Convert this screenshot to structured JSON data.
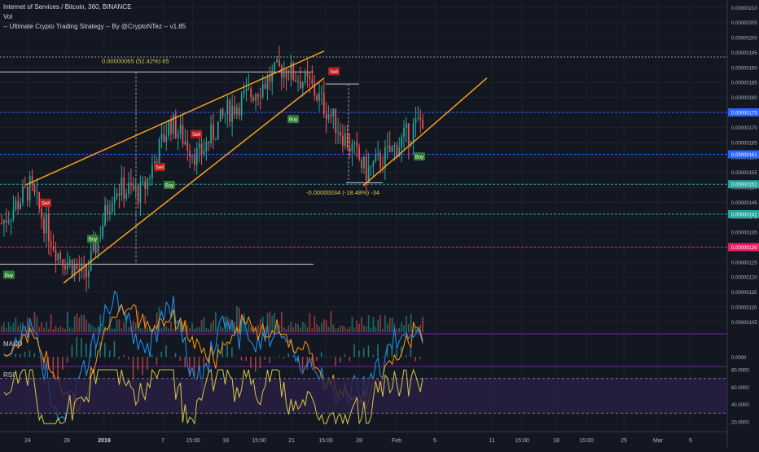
{
  "header": {
    "symbol_line": "Internet of Services / Bitcoin, 360, BINANCE",
    "vol_label": "Vol",
    "strategy_label": "-- Ultimate Crypto Trading Strategy -- By @CryptoNTez -- v1.85"
  },
  "panes": {
    "macd_label": "MACD",
    "rsi_label": "RSI"
  },
  "colors": {
    "background": "#131722",
    "grid": "#1e2230",
    "up_candle": "#26a69a",
    "down_candle": "#ef5350",
    "trendline": "#f7a11a",
    "buy": "#2e7d32",
    "sell": "#b71c1c",
    "macd_line": "#2196f3",
    "signal_line": "#ff9800",
    "rsi_line": "#d4c84a",
    "rsi_band": "#2a1f45"
  },
  "chart_data": {
    "type": "candlestick",
    "price_axis_labels": [
      "0.00000210",
      "0.00000205",
      "0.00000200",
      "0.00000195",
      "0.00000190",
      "0.00000185",
      "0.00000180",
      "0.00000175",
      "0.00000170",
      "0.00000165",
      "0.00000160",
      "0.00000155",
      "0.00000150",
      "0.00000145",
      "0.00000140",
      "0.00000135",
      "0.00000130",
      "0.00000125",
      "0.00000120",
      "0.00000115",
      "0.00000110",
      "0.00000105"
    ],
    "x_axis_labels": [
      "24",
      "28",
      "2019",
      "7",
      "15:00",
      "18",
      "15:00",
      "21",
      "15:00",
      "28",
      "Feb",
      "5",
      "11",
      "15:00",
      "18",
      "15:00",
      "25",
      "Mar",
      "5"
    ],
    "horizontal_levels": [
      {
        "value": "0.00000175",
        "color": "#2962ff"
      },
      {
        "value": "0.00000161",
        "color": "#2962ff"
      },
      {
        "value": "0.00000151",
        "color": "#26a69a"
      },
      {
        "value": "0.00000141",
        "color": "#26a69a"
      },
      {
        "value": "0.00000130",
        "color": "#e91e63"
      }
    ],
    "measure_up": "0.00000065 (52.42%) 65",
    "measure_down": "-0.00000034 (-18.48%) -34",
    "signals": [
      {
        "type": "Buy",
        "price": 1.205e-06
      },
      {
        "type": "Sell",
        "price": 1.445e-06
      },
      {
        "type": "Buy",
        "price": 1.325e-06
      },
      {
        "type": "Sell",
        "price": 1.565e-06
      },
      {
        "type": "Buy",
        "price": 1.505e-06
      },
      {
        "type": "Sell",
        "price": 1.675e-06
      },
      {
        "type": "Buy",
        "price": 1.725e-06
      },
      {
        "type": "Sell",
        "price": 1.885e-06
      },
      {
        "type": "Buy",
        "price": 1.6e-06
      }
    ],
    "macd_axis_label": "0.0000",
    "rsi_axis_labels": [
      "80.0000",
      "60.0000",
      "40.0000",
      "20.0000"
    ],
    "rsi_levels": [
      70,
      30
    ],
    "series_shape": [
      {
        "price": 1.38e-06
      },
      {
        "price": 1.5e-06
      },
      {
        "price": 1.28e-06
      },
      {
        "price": 1.2e-06
      },
      {
        "price": 1.5e-06
      },
      {
        "price": 1.48e-06
      },
      {
        "price": 1.72e-06
      },
      {
        "price": 1.6e-06
      },
      {
        "price": 1.75e-06
      },
      {
        "price": 1.82e-06
      },
      {
        "price": 1.9e-06
      },
      {
        "price": 1.84e-06
      },
      {
        "price": 1.7e-06
      },
      {
        "price": 1.55e-06
      },
      {
        "price": 1.63e-06
      },
      {
        "price": 1.73e-06
      }
    ]
  }
}
